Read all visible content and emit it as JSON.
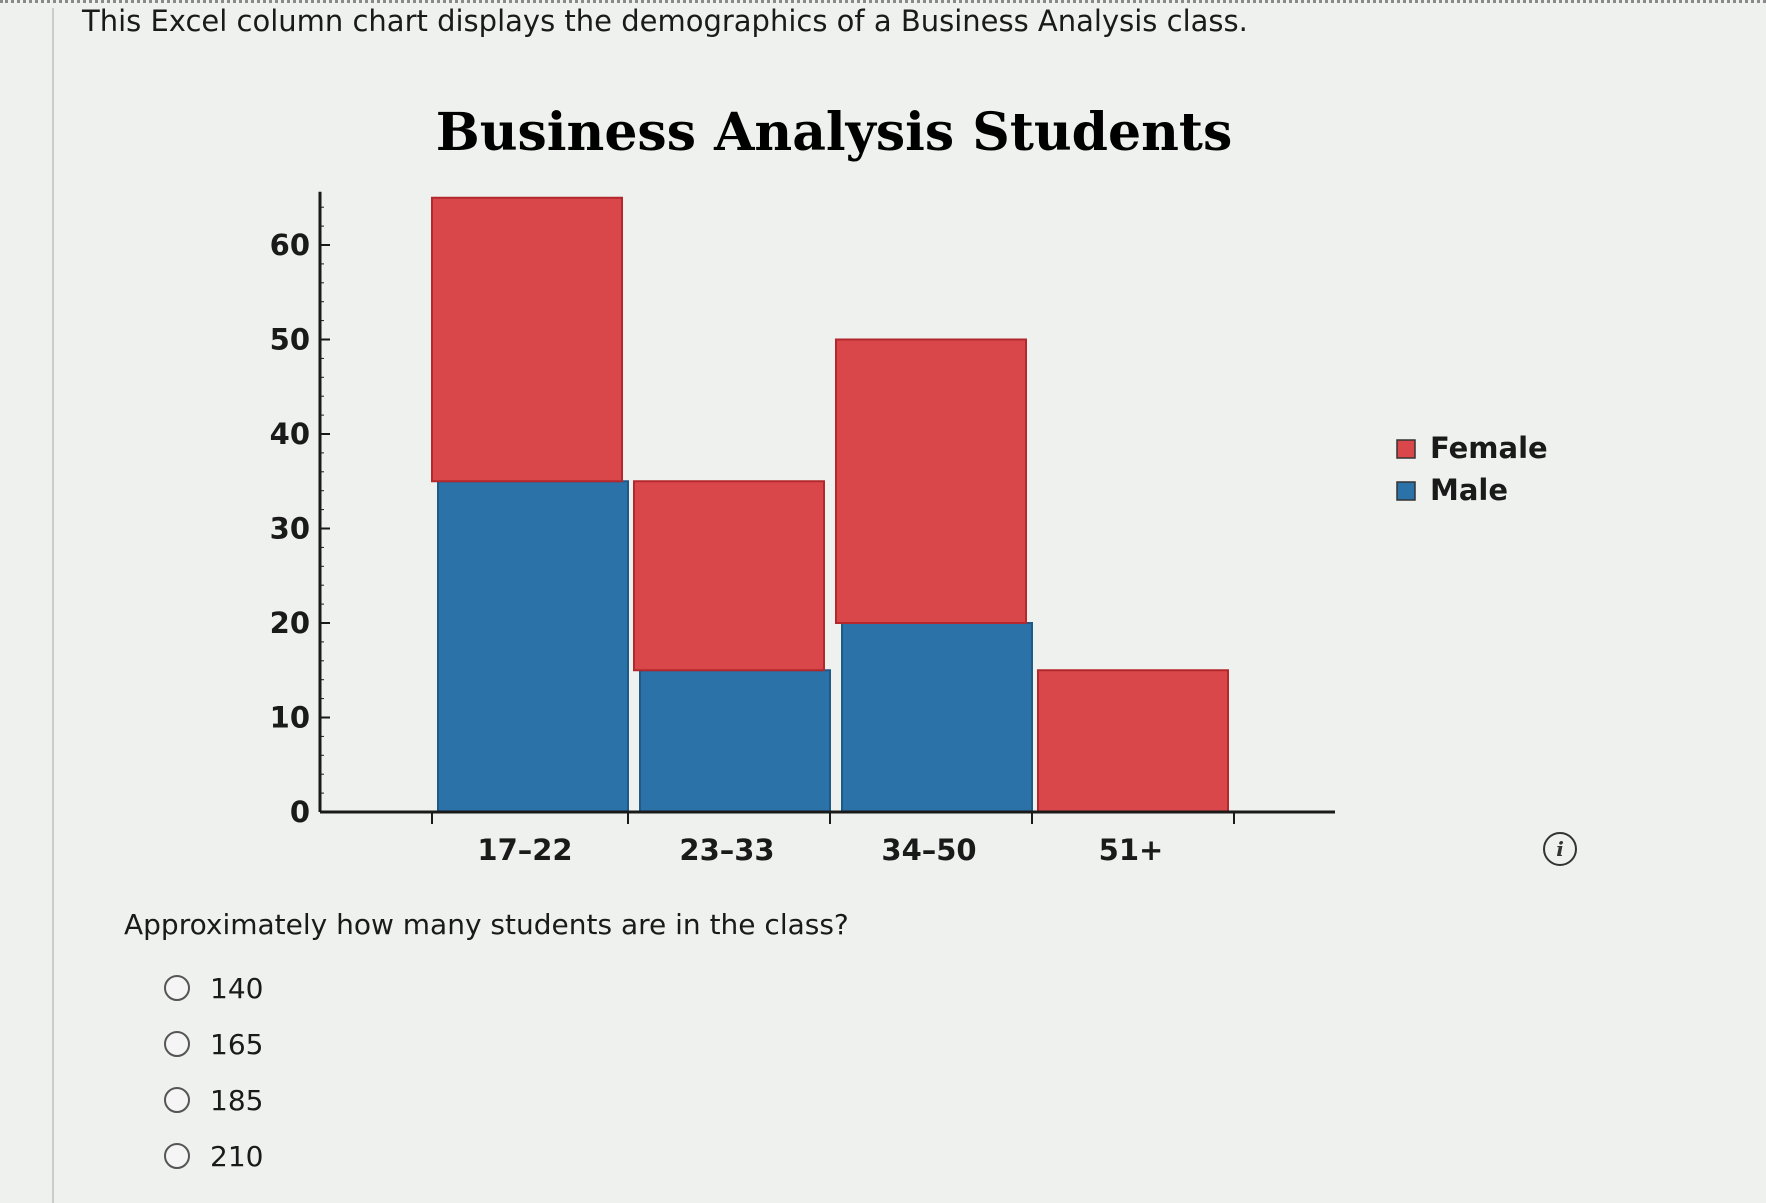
{
  "intro_text": "This Excel column chart displays the demographics of a Business Analysis class.",
  "question": "Approximately how many students are in the class?",
  "options": [
    "140",
    "165",
    "185",
    "210"
  ],
  "colors": {
    "female": "#d9474a",
    "male": "#2a72a8",
    "axis": "#1a1a1a",
    "bar_edge": "#b3282c"
  },
  "chart_data": {
    "type": "bar",
    "stacked": true,
    "title": "Business Analysis Students",
    "xlabel": "",
    "ylabel": "",
    "categories": [
      "17–22",
      "23–33",
      "34–50",
      "51+"
    ],
    "series": [
      {
        "name": "Male",
        "values": [
          35,
          15,
          20,
          0
        ]
      },
      {
        "name": "Female",
        "values": [
          30,
          20,
          30,
          15
        ]
      }
    ],
    "ylim": [
      0,
      65
    ],
    "yticks": [
      0,
      10,
      20,
      30,
      40,
      50,
      60
    ],
    "legend": {
      "position": "right",
      "entries": [
        "Female",
        "Male"
      ]
    },
    "grid": false
  }
}
